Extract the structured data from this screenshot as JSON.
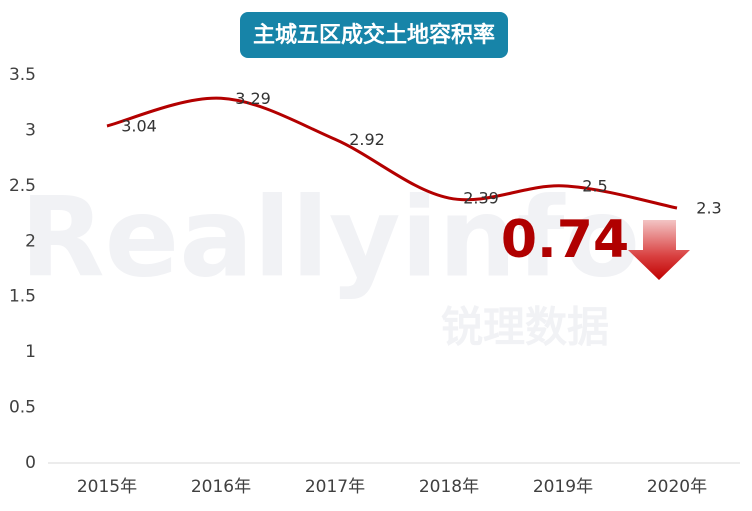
{
  "chart_data": {
    "type": "line",
    "title": "主城五区成交土地容积率",
    "categories": [
      "2015年",
      "2016年",
      "2017年",
      "2018年",
      "2019年",
      "2020年"
    ],
    "values": [
      3.04,
      3.29,
      2.92,
      2.39,
      2.5,
      2.3
    ],
    "color": "#b30000",
    "ylim": [
      0,
      3.5
    ],
    "yticks": [
      0,
      0.5,
      1,
      1.5,
      2,
      2.5,
      3,
      3.5
    ],
    "annotation": "0.74",
    "watermark": [
      "Reallyinfo",
      "锐理数据"
    ]
  }
}
